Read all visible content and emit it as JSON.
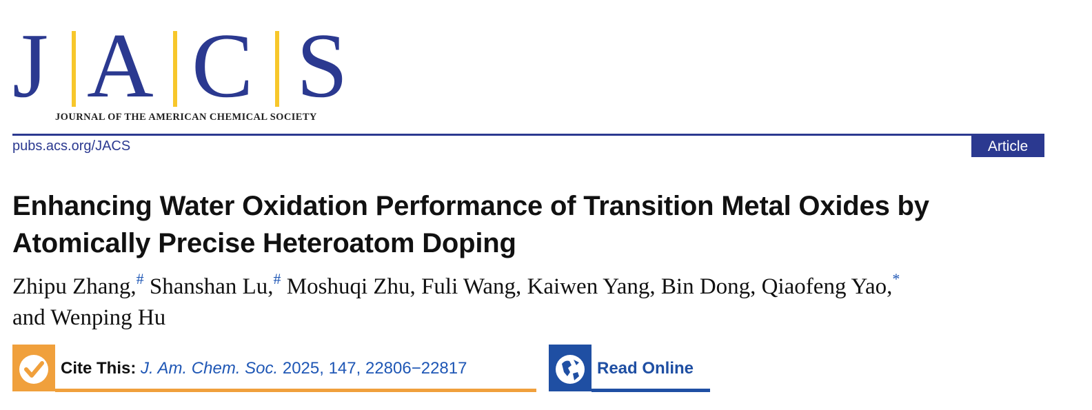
{
  "logo": {
    "letters": [
      "J",
      "A",
      "C",
      "S"
    ],
    "subtitle": "JOURNAL OF THE AMERICAN CHEMICAL SOCIETY"
  },
  "header": {
    "url": "pubs.acs.org/JACS",
    "badge": "Article"
  },
  "title": "Enhancing Water Oxidation Performance of Transition Metal Oxides by Atomically Precise Heteroatom Doping",
  "authors": [
    {
      "name": "Zhipu Zhang,",
      "mark": "#"
    },
    {
      "name": "Shanshan Lu,",
      "mark": "#"
    },
    {
      "name": "Moshuqi Zhu,"
    },
    {
      "name": "Fuli Wang,"
    },
    {
      "name": "Kaiwen Yang,"
    },
    {
      "name": "Bin Dong,"
    },
    {
      "name": "Qiaofeng Yao,",
      "mark": "*"
    },
    {
      "name": "and Wenping Hu"
    }
  ],
  "cite": {
    "label": "Cite This:",
    "journal": "J. Am. Chem. Soc.",
    "details": "2025, 147, 22806−22817"
  },
  "read_online": "Read Online"
}
